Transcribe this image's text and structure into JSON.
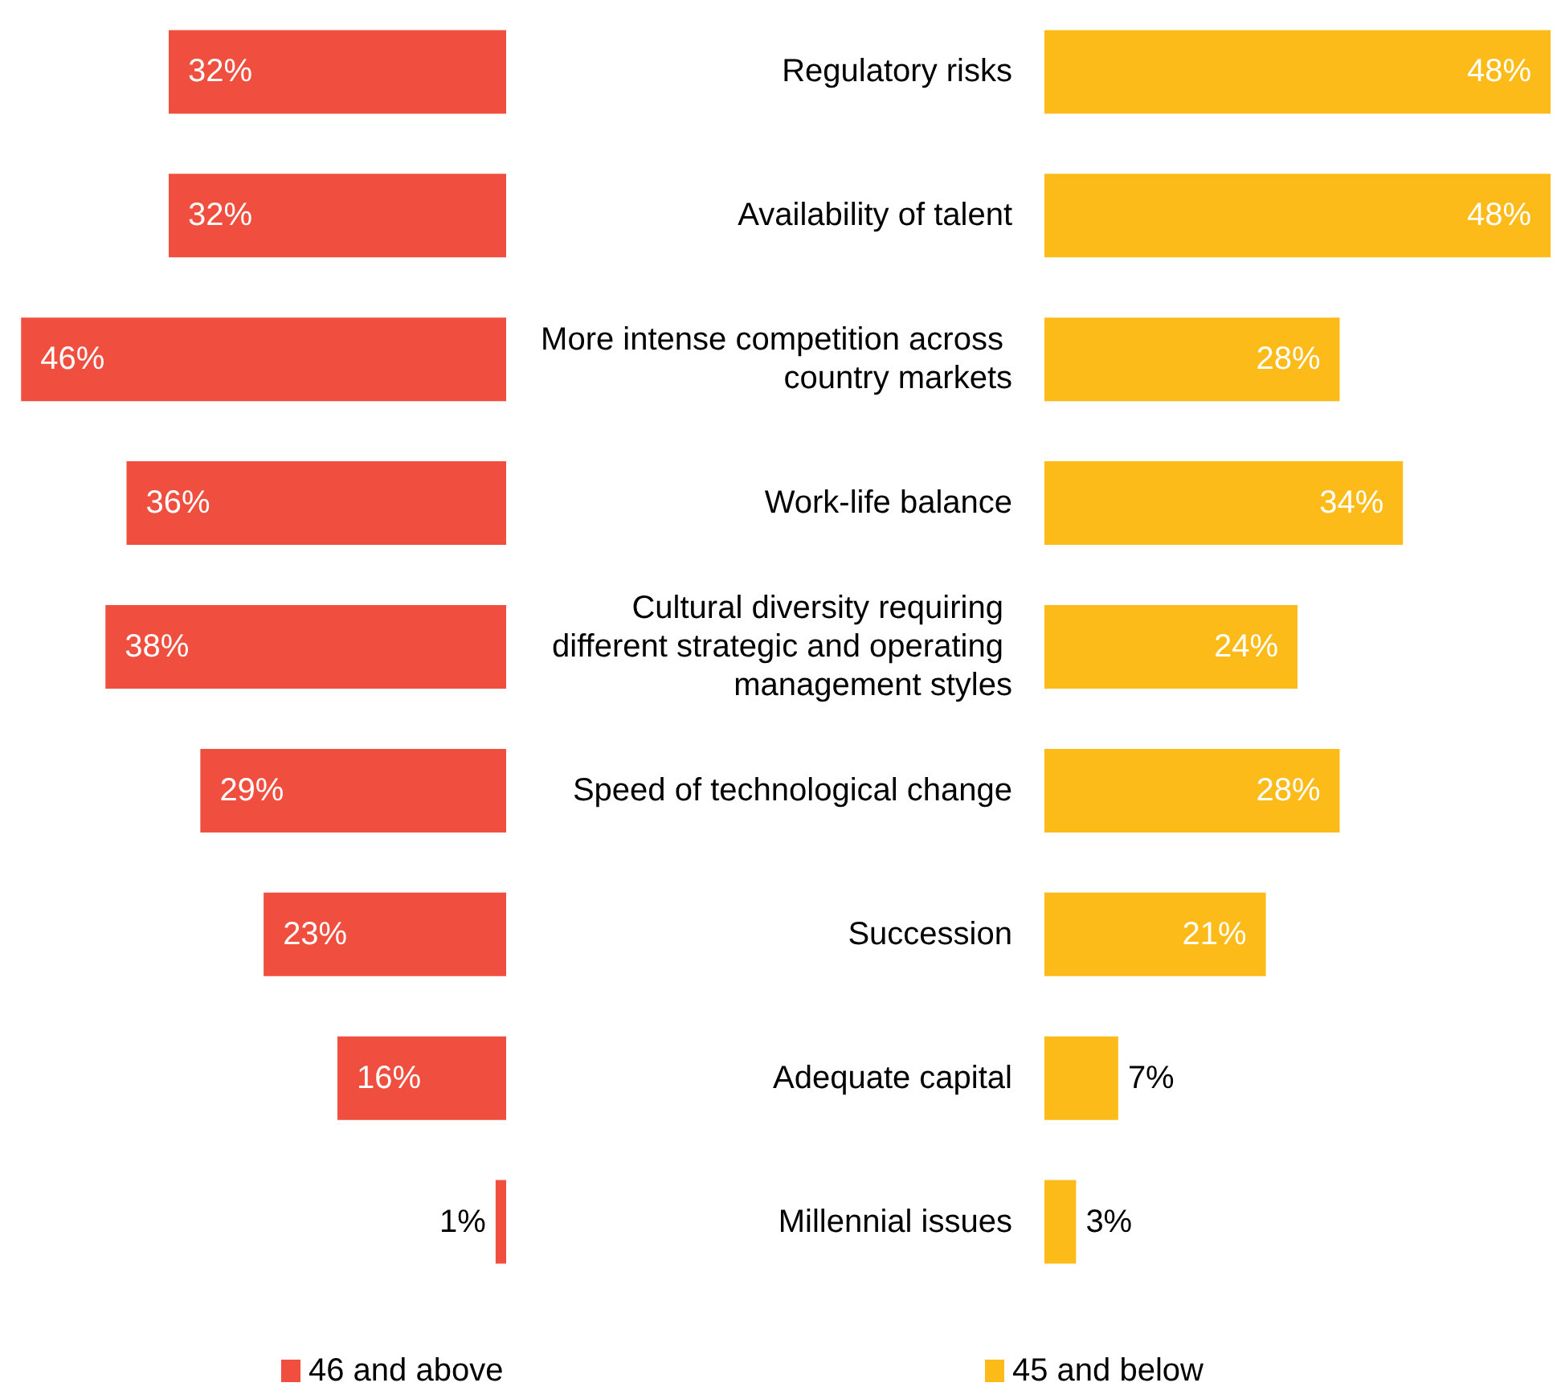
{
  "chart_data": [
    {
      "type": "bar",
      "orientation": "horizontal",
      "categories": [
        "Regulatory risks",
        "Availability of talent",
        "More intense competition across country markets",
        "Work-life balance",
        "Cultural diversity requiring different strategic and operating management styles",
        "Speed of technological change",
        "Succession",
        "Adequate capital",
        "Millennial issues"
      ],
      "series": [
        {
          "name": "46 and above",
          "color": "#f04e3e",
          "values": [
            32,
            32,
            46,
            36,
            38,
            29,
            23,
            16,
            1
          ],
          "value_labels": [
            "32%",
            "32%",
            "46%",
            "36%",
            "38%",
            "29%",
            "23%",
            "16%",
            "1%"
          ]
        }
      ],
      "tick_labels": false,
      "legend": "bottom"
    },
    {
      "type": "bar",
      "orientation": "horizontal",
      "categories": [
        "Regulatory risks",
        "Availability of talent",
        "More intense competition across country markets",
        "Work-life balance",
        "Cultural diversity requiring different strategic and operating management styles",
        "Speed of technological change",
        "Succession",
        "Adequate capital",
        "Millennial issues"
      ],
      "series": [
        {
          "name": "45 and below",
          "color": "#fdbb1a",
          "values": [
            48,
            48,
            28,
            34,
            24,
            28,
            21,
            7,
            3
          ],
          "value_labels": [
            "48%",
            "48%",
            "28%",
            "34%",
            "24%",
            "28%",
            "21%",
            "7%",
            "3%"
          ]
        }
      ],
      "legend": "bottom"
    }
  ]
}
